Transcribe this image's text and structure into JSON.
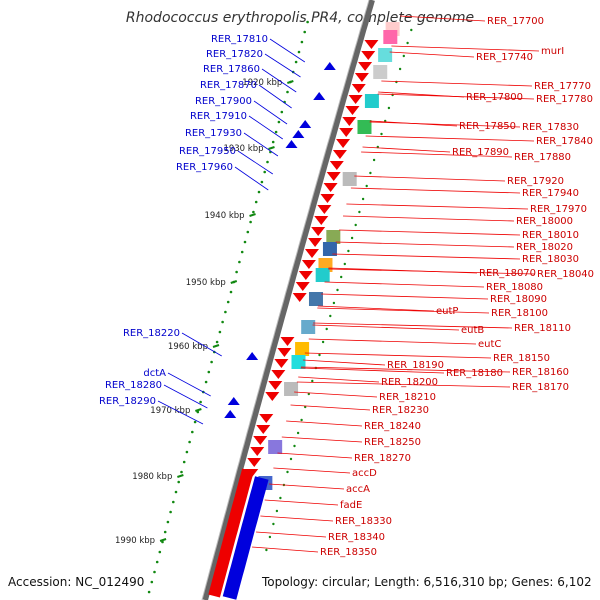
{
  "title": "Rhodococcus erythropolis PR4, complete genome",
  "footer": {
    "accession": "Accession: NC_012490",
    "topology": "Topology: circular; Length: 6,516,310 bp; Genes: 6,102"
  },
  "colors": {
    "forward": "#ee0000",
    "reverse": "#0000dd",
    "backbone": "#999999",
    "scale": "#118811"
  },
  "kbp_labels": [
    "1920 kbp",
    "1930 kbp",
    "1940 kbp",
    "1950 kbp",
    "1960 kbp",
    "1970 kbp",
    "1980 kbp",
    "1990 kbp"
  ],
  "right_genes": [
    "RER_17700",
    "murI",
    "RER_17740",
    "RER_17770",
    "RER_17780",
    "RER_17800",
    "RER_17830",
    "RER_17850",
    "RER_17840",
    "RER_17890",
    "RER_17880",
    "RER_17920",
    "RER_17940",
    "RER_17970",
    "RER_18000",
    "RER_18010",
    "RER_18020",
    "RER_18030",
    "RER_18040",
    "RER_18070",
    "RER_18080",
    "RER_18090",
    "RER_18100",
    "eutP",
    "RER_18110",
    "eutB",
    "eutC",
    "RER_18150",
    "RER_18160",
    "RER_18190",
    "RER_18180",
    "RER_18170",
    "RER_18200",
    "RER_18210",
    "RER_18230",
    "RER_18240",
    "RER_18250",
    "RER_18270",
    "accD",
    "accA",
    "fadE",
    "RER_18330",
    "RER_18340",
    "RER_18350"
  ],
  "left_genes": [
    "RER_17810",
    "RER_17820",
    "RER_17860",
    "RER_17870",
    "RER_17900",
    "RER_17910",
    "RER_17930",
    "RER_17950",
    "RER_17960",
    "RER_18220",
    "dctA",
    "RER_18280",
    "RER_18290"
  ]
}
